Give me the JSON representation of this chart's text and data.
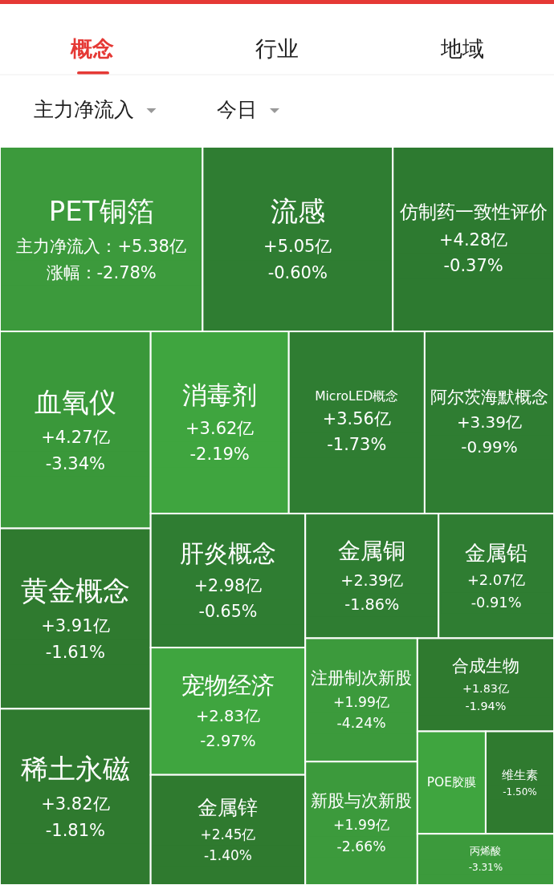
{
  "chart_data": {
    "type": "other",
    "categories": [
      "PET铜箔",
      "流感",
      "仿制药一致性评价",
      "血氧仪",
      "黄金概念",
      "稀土永磁",
      "消毒剂",
      "MicroLED概念",
      "阿尔茨海默概念",
      "肝炎概念",
      "宠物经济",
      "金属锌",
      "金属铜",
      "金属铅",
      "注册制次新股",
      "新股与次新股",
      "合成生物",
      "POE胶膜",
      "维生素",
      "丙烯酸"
    ],
    "series": [
      {
        "values": [
          5.38,
          5.05,
          4.28,
          4.27,
          3.91,
          3.82,
          3.62,
          3.56,
          3.39,
          2.98,
          2.83,
          2.45,
          2.39,
          2.07,
          1.99,
          1.99,
          1.83,
          null,
          null,
          null
        ],
        "value_labels": [
          "主力净流入：+5.38亿",
          "+5.05亿",
          "+4.28亿",
          "+4.27亿",
          "+3.91亿",
          "+3.82亿",
          "+3.62亿",
          "+3.56亿",
          "+3.39亿",
          "+2.98亿",
          "+2.83亿",
          "+2.45亿",
          "+2.39亿",
          "+2.07亿",
          "+1.99亿",
          "+1.99亿",
          "+1.83亿",
          null,
          null,
          null
        ],
        "colors": [
          "#3c9a3c",
          "#2f7d32",
          "#2d7a30",
          "#3a983a",
          "#2f7a2f",
          "#2f7a2f",
          "#3fa53f",
          "#2f7d32",
          "#2f7d32",
          "#2f7d32",
          "#3fa53f",
          "#2f7a2f",
          "#2f7d32",
          "#2f7d32",
          "#3c9a3c",
          "#3c9a3c",
          "#2f7a2f",
          "#3fa53f",
          "#2f7a2f",
          "#3c9a3c"
        ]
      },
      {
        "values": [
          -2.78,
          -0.6,
          -0.37,
          -3.34,
          -1.61,
          -1.81,
          -2.19,
          -1.73,
          -0.99,
          -0.65,
          -2.97,
          -1.4,
          -1.86,
          -0.91,
          -4.24,
          -2.66,
          -1.94,
          null,
          -1.5,
          -3.31
        ],
        "value_labels": [
          "涨幅：-2.78%",
          "-0.60%",
          "-0.37%",
          "-3.34%",
          "-1.61%",
          "-1.81%",
          "-2.19%",
          "-1.73%",
          "-0.99%",
          "-0.65%",
          "-2.97%",
          "-1.40%",
          "-1.86%",
          "-0.91%",
          "-4.24%",
          "-2.66%",
          "-1.94%",
          null,
          "-1.50%",
          "-3.31%"
        ],
        "colors": [
          "#3c9a3c",
          "#2f7d32",
          "#2d7a30",
          "#3a983a",
          "#2f7a2f",
          "#2f7a2f",
          "#3fa53f",
          "#2f7d32",
          "#2f7d32",
          "#2f7d32",
          "#3fa53f",
          "#2f7a2f",
          "#2f7d32",
          "#2f7d32",
          "#3c9a3c",
          "#3c9a3c",
          "#2f7a2f",
          null,
          "#2f7a2f",
          "#3c9a3c"
        ]
      }
    ],
    "annotations": [
      "概念",
      "行业",
      "地域",
      "主力净流入",
      "今日"
    ]
  }
}
